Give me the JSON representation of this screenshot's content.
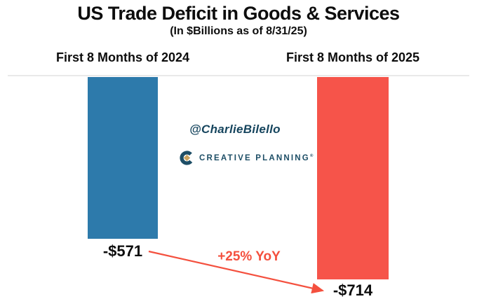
{
  "chart_data": {
    "type": "bar",
    "title": "US Trade Deficit in Goods & Services",
    "subtitle": "(In $Billions as of 8/31/25)",
    "categories": [
      "First 8 Months of 2024",
      "First 8 Months of 2025"
    ],
    "values": [
      -571,
      -714
    ],
    "value_labels": [
      "-$571",
      "-$714"
    ],
    "series_colors": [
      "#2d7aab",
      "#f6544a"
    ],
    "annotation": {
      "text": "+25% YoY",
      "color": "#f4503e"
    },
    "baseline_value": 0,
    "bars_hang_below_zero": true,
    "axis_line_color": "#e9e9e9",
    "grid": false,
    "legend": "none",
    "ylabel": "",
    "xlabel": ""
  },
  "branding": {
    "handle": "@CharlieBilello",
    "handle_color": "#16455e",
    "logo_text": "CREATIVE PLANNING",
    "logo_registered_mark": "®",
    "logo_navy": "#1d4e66",
    "logo_gold": "#c9a35f"
  }
}
